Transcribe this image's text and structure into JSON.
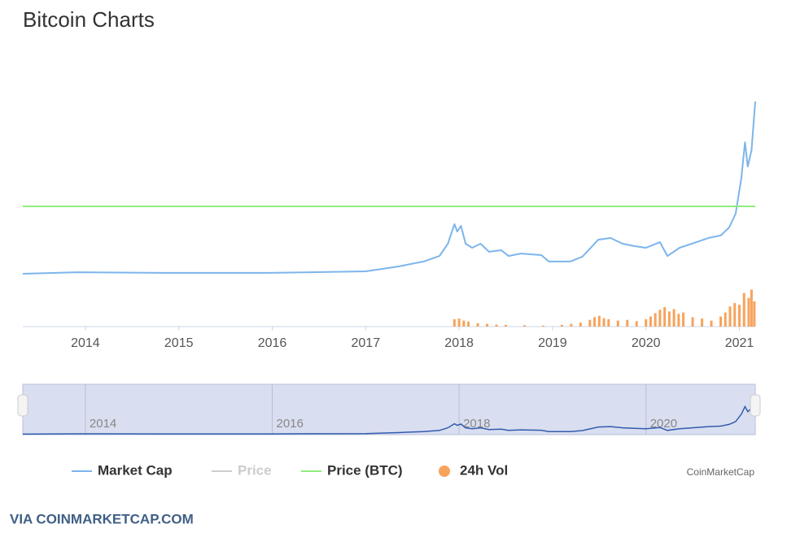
{
  "chart_data": {
    "type": "line",
    "title": "Bitcoin Charts",
    "xlim": [
      2013.33,
      2021.17
    ],
    "xticks": [
      2014,
      2015,
      2016,
      2017,
      2018,
      2019,
      2020,
      2021
    ],
    "ylim": [
      0,
      1200
    ],
    "y2lim": [
      0,
      3
    ],
    "y3lim": [
      0,
      150
    ],
    "navigator_xticks": [
      2014,
      2016,
      2018,
      2020
    ],
    "legend": "bottom",
    "series": [
      {
        "name": "Market Cap",
        "color": "#7cb5ec",
        "x": [
          2013.33,
          2013.91,
          2014.83,
          2015.96,
          2017.0,
          2017.35,
          2017.62,
          2017.79,
          2017.88,
          2017.95,
          2017.98,
          2018.02,
          2018.07,
          2018.14,
          2018.23,
          2018.32,
          2018.45,
          2018.53,
          2018.66,
          2018.88,
          2018.96,
          2019.19,
          2019.32,
          2019.49,
          2019.62,
          2019.75,
          2019.88,
          2020.0,
          2020.15,
          2020.23,
          2020.36,
          2020.54,
          2020.67,
          2020.8,
          2020.89,
          2020.96,
          2021.02,
          2021.06,
          2021.09,
          2021.13,
          2021.17
        ],
        "values": [
          14,
          23,
          19,
          19,
          28,
          56,
          84,
          116,
          186,
          298,
          256,
          288,
          186,
          163,
          186,
          140,
          149,
          116,
          130,
          121,
          84,
          84,
          112,
          209,
          219,
          186,
          172,
          163,
          195,
          116,
          163,
          195,
          219,
          233,
          279,
          358,
          558,
          767,
          628,
          721,
          1000
        ]
      },
      {
        "name": "Price",
        "color": "#cccccc",
        "hidden": true
      },
      {
        "name": "Price (BTC)",
        "color": "#90ed7d",
        "axis": "y2",
        "x": [
          2013.33,
          2021.17
        ],
        "values": [
          1,
          1
        ]
      },
      {
        "name": "24h Vol",
        "color": "#f7a35c",
        "axis": "y3",
        "type": "column",
        "x": [
          2017.95,
          2018.0,
          2018.05,
          2018.1,
          2018.2,
          2018.3,
          2018.4,
          2018.5,
          2018.7,
          2018.9,
          2019.1,
          2019.2,
          2019.3,
          2019.4,
          2019.45,
          2019.5,
          2019.55,
          2019.6,
          2019.7,
          2019.8,
          2019.9,
          2020.0,
          2020.05,
          2020.1,
          2020.15,
          2020.2,
          2020.25,
          2020.3,
          2020.35,
          2020.4,
          2020.5,
          2020.6,
          2020.7,
          2020.8,
          2020.85,
          2020.9,
          2020.95,
          2021.0,
          2021.05,
          2021.1,
          2021.13,
          2021.16
        ],
        "values": [
          22,
          24,
          18,
          15,
          10,
          8,
          6,
          5,
          4,
          3,
          5,
          8,
          12,
          20,
          28,
          32,
          25,
          22,
          18,
          20,
          16,
          22,
          30,
          40,
          50,
          58,
          45,
          52,
          38,
          42,
          28,
          24,
          18,
          30,
          42,
          60,
          70,
          65,
          100,
          85,
          110,
          75
        ]
      }
    ],
    "credit": "CoinMarketCap",
    "footer": "VIA COINMARKETCAP.COM"
  }
}
